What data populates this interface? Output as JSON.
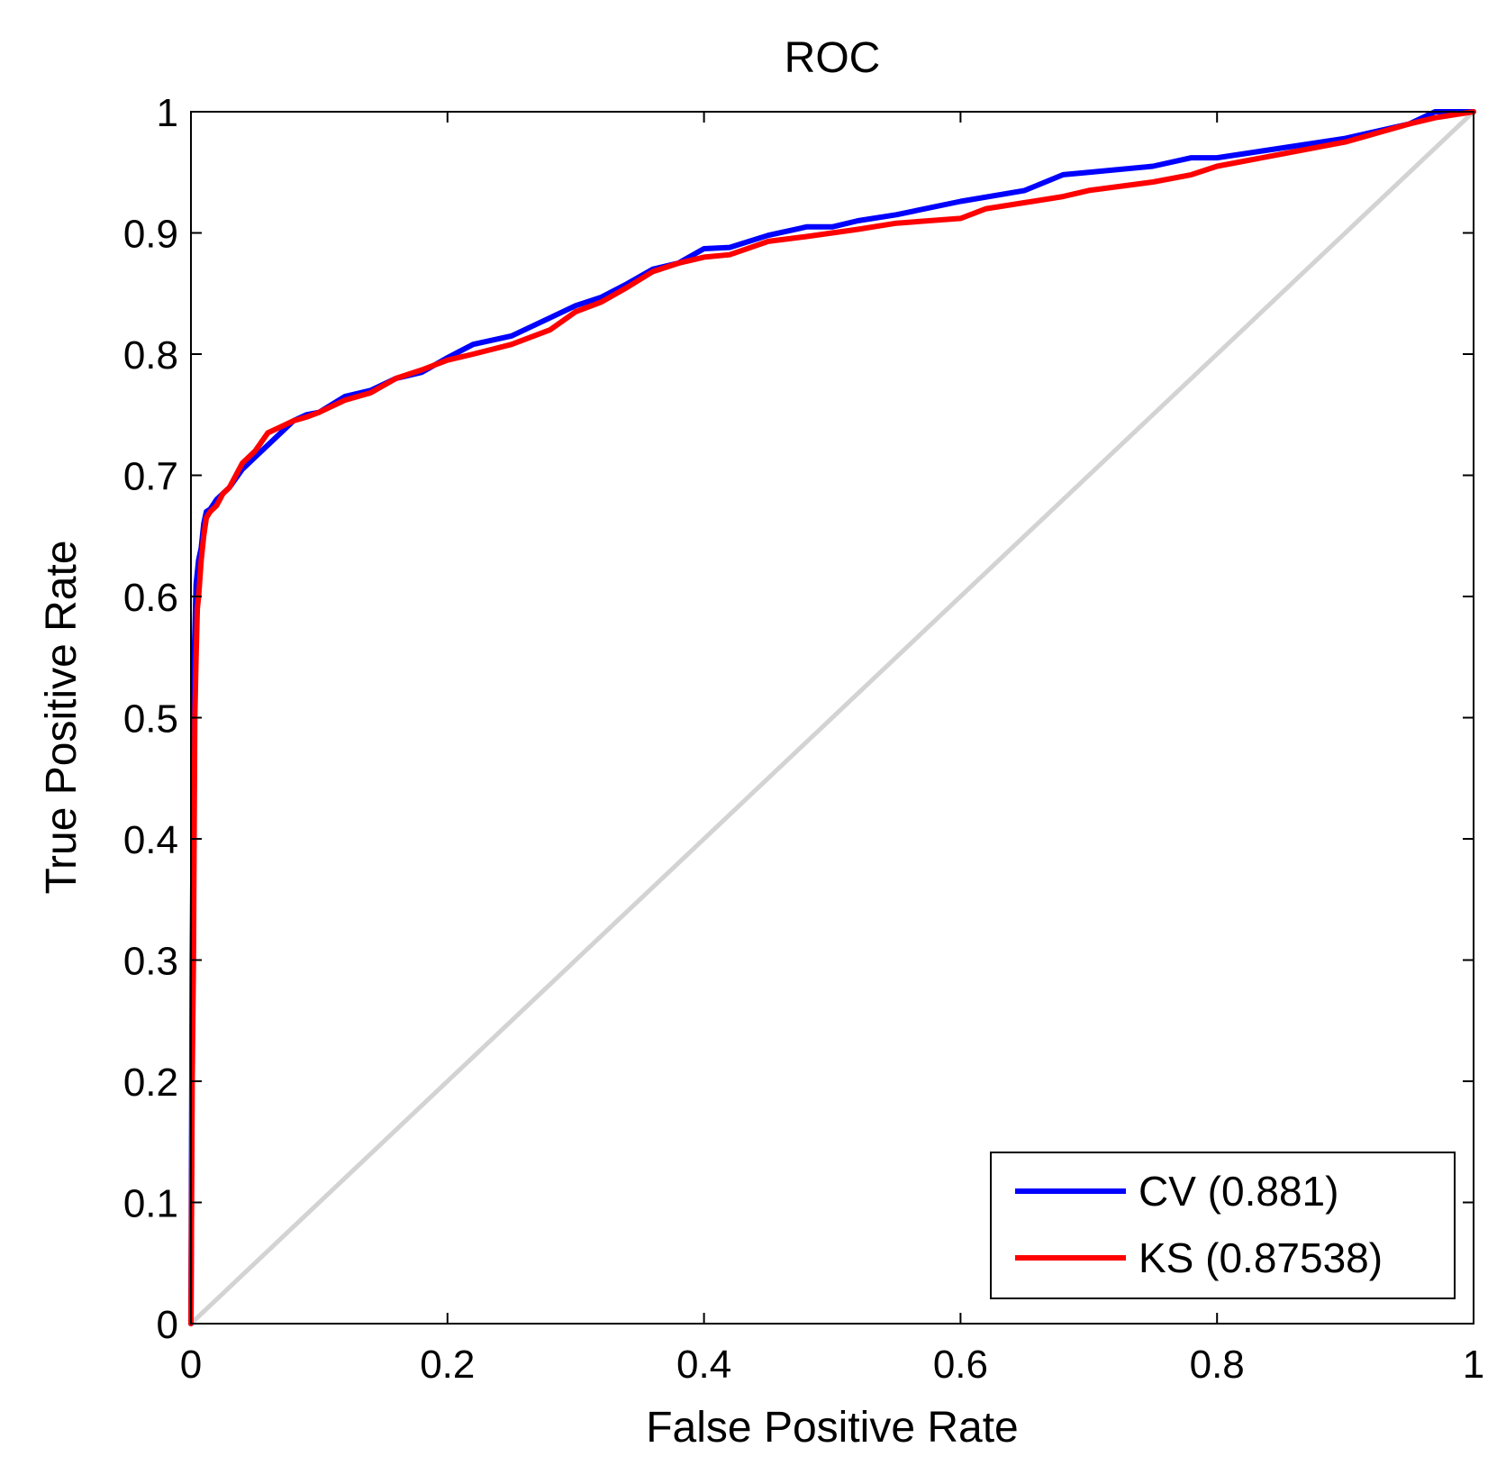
{
  "chart_data": {
    "type": "line",
    "title": "ROC",
    "xlabel": "False Positive Rate",
    "ylabel": "True Positive Rate",
    "xlim": [
      0,
      1
    ],
    "ylim": [
      0,
      1
    ],
    "xticks": [
      0,
      0.2,
      0.4,
      0.6,
      0.8,
      1
    ],
    "xtick_labels": [
      "0",
      "0.2",
      "0.4",
      "0.6",
      "0.8",
      "1"
    ],
    "yticks": [
      0,
      0.1,
      0.2,
      0.3,
      0.4,
      0.5,
      0.6,
      0.7,
      0.8,
      0.9,
      1
    ],
    "ytick_labels": [
      "0",
      "0.1",
      "0.2",
      "0.3",
      "0.4",
      "0.5",
      "0.6",
      "0.7",
      "0.8",
      "0.9",
      "1"
    ],
    "grid": false,
    "legend_position": "bottom-right",
    "reference_line": {
      "name": "chance",
      "color": "#d3d3d3",
      "x": [
        0,
        1
      ],
      "y": [
        0,
        1
      ]
    },
    "series": [
      {
        "name": "CV (0.881)",
        "color": "#0000ff",
        "x": [
          0,
          0.001,
          0.002,
          0.002,
          0.003,
          0.004,
          0.005,
          0.006,
          0.008,
          0.01,
          0.012,
          0.015,
          0.02,
          0.025,
          0.03,
          0.04,
          0.05,
          0.06,
          0.07,
          0.08,
          0.09,
          0.1,
          0.12,
          0.14,
          0.16,
          0.18,
          0.2,
          0.22,
          0.25,
          0.28,
          0.3,
          0.32,
          0.34,
          0.36,
          0.38,
          0.4,
          0.42,
          0.45,
          0.48,
          0.5,
          0.52,
          0.55,
          0.6,
          0.65,
          0.68,
          0.7,
          0.75,
          0.78,
          0.8,
          0.85,
          0.9,
          0.95,
          0.97,
          1.0
        ],
        "y": [
          0,
          0.3,
          0.45,
          0.53,
          0.57,
          0.61,
          0.62,
          0.63,
          0.64,
          0.66,
          0.67,
          0.672,
          0.68,
          0.685,
          0.69,
          0.705,
          0.715,
          0.725,
          0.735,
          0.745,
          0.75,
          0.752,
          0.765,
          0.77,
          0.78,
          0.785,
          0.797,
          0.808,
          0.815,
          0.83,
          0.84,
          0.847,
          0.858,
          0.87,
          0.875,
          0.887,
          0.888,
          0.898,
          0.905,
          0.905,
          0.91,
          0.915,
          0.926,
          0.935,
          0.948,
          0.95,
          0.955,
          0.962,
          0.962,
          0.97,
          0.978,
          0.99,
          1.0,
          1.0
        ]
      },
      {
        "name": "KS (0.87538)",
        "color": "#ff0000",
        "x": [
          0,
          0.001,
          0.002,
          0.003,
          0.004,
          0.005,
          0.006,
          0.008,
          0.01,
          0.012,
          0.015,
          0.02,
          0.025,
          0.03,
          0.04,
          0.05,
          0.06,
          0.07,
          0.08,
          0.09,
          0.1,
          0.12,
          0.14,
          0.16,
          0.18,
          0.2,
          0.22,
          0.25,
          0.28,
          0.3,
          0.32,
          0.34,
          0.36,
          0.38,
          0.4,
          0.42,
          0.45,
          0.48,
          0.5,
          0.52,
          0.55,
          0.6,
          0.62,
          0.65,
          0.68,
          0.7,
          0.75,
          0.78,
          0.8,
          0.85,
          0.9,
          0.95,
          0.97,
          1.0
        ],
        "y": [
          0,
          0.2,
          0.3,
          0.5,
          0.55,
          0.59,
          0.6,
          0.63,
          0.65,
          0.665,
          0.67,
          0.675,
          0.685,
          0.69,
          0.71,
          0.72,
          0.735,
          0.74,
          0.745,
          0.748,
          0.752,
          0.762,
          0.768,
          0.78,
          0.787,
          0.795,
          0.8,
          0.808,
          0.82,
          0.835,
          0.843,
          0.855,
          0.868,
          0.875,
          0.88,
          0.882,
          0.893,
          0.897,
          0.9,
          0.903,
          0.908,
          0.912,
          0.92,
          0.925,
          0.93,
          0.935,
          0.942,
          0.948,
          0.955,
          0.965,
          0.975,
          0.99,
          0.995,
          1.0
        ]
      }
    ]
  }
}
